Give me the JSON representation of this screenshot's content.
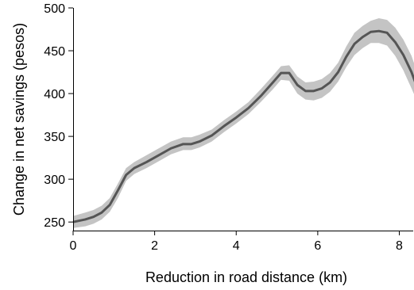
{
  "chart_data": {
    "type": "line",
    "xlabel": "Reduction in road distance (km)",
    "ylabel": "Change in net savings (pesos)",
    "xlim": [
      0,
      8.4
    ],
    "ylim": [
      240,
      500
    ],
    "xticks": [
      0,
      2,
      4,
      6,
      8
    ],
    "yticks": [
      250,
      300,
      350,
      400,
      450,
      500
    ],
    "xtick_labels": [
      "0",
      "2",
      "4",
      "6",
      "8"
    ],
    "ytick_labels": [
      "250",
      "300",
      "350",
      "400",
      "450",
      "500"
    ],
    "grid": false,
    "line_color": "#555555",
    "band_color": "#c4c4c4",
    "series": [
      {
        "x": [
          0,
          0.3,
          0.5,
          0.7,
          0.9,
          1.1,
          1.3,
          1.5,
          1.8,
          2.1,
          2.4,
          2.7,
          2.9,
          3.1,
          3.4,
          3.7,
          4.0,
          4.3,
          4.6,
          4.9,
          5.1,
          5.3,
          5.5,
          5.7,
          5.9,
          6.1,
          6.3,
          6.5,
          6.7,
          6.9,
          7.1,
          7.3,
          7.5,
          7.7,
          7.9,
          8.1,
          8.3,
          8.4
        ],
        "y": [
          250,
          253,
          256,
          261,
          270,
          287,
          305,
          313,
          320,
          328,
          336,
          341,
          341,
          344,
          351,
          362,
          372,
          383,
          397,
          413,
          424,
          424,
          410,
          403,
          403,
          406,
          413,
          425,
          443,
          458,
          466,
          472,
          473,
          471,
          460,
          445,
          425,
          412
        ],
        "lower": [
          243,
          245,
          248,
          253,
          262,
          278,
          298,
          306,
          313,
          321,
          329,
          334,
          334,
          337,
          344,
          355,
          365,
          376,
          390,
          405,
          416,
          415,
          400,
          393,
          392,
          395,
          402,
          414,
          431,
          445,
          453,
          459,
          459,
          456,
          444,
          427,
          406,
          395
        ],
        "upper": [
          257,
          261,
          264,
          269,
          278,
          295,
          313,
          320,
          328,
          336,
          344,
          349,
          349,
          352,
          358,
          369,
          379,
          390,
          405,
          421,
          432,
          433,
          420,
          413,
          414,
          417,
          424,
          436,
          455,
          471,
          479,
          485,
          488,
          486,
          477,
          463,
          444,
          430
        ]
      }
    ]
  }
}
